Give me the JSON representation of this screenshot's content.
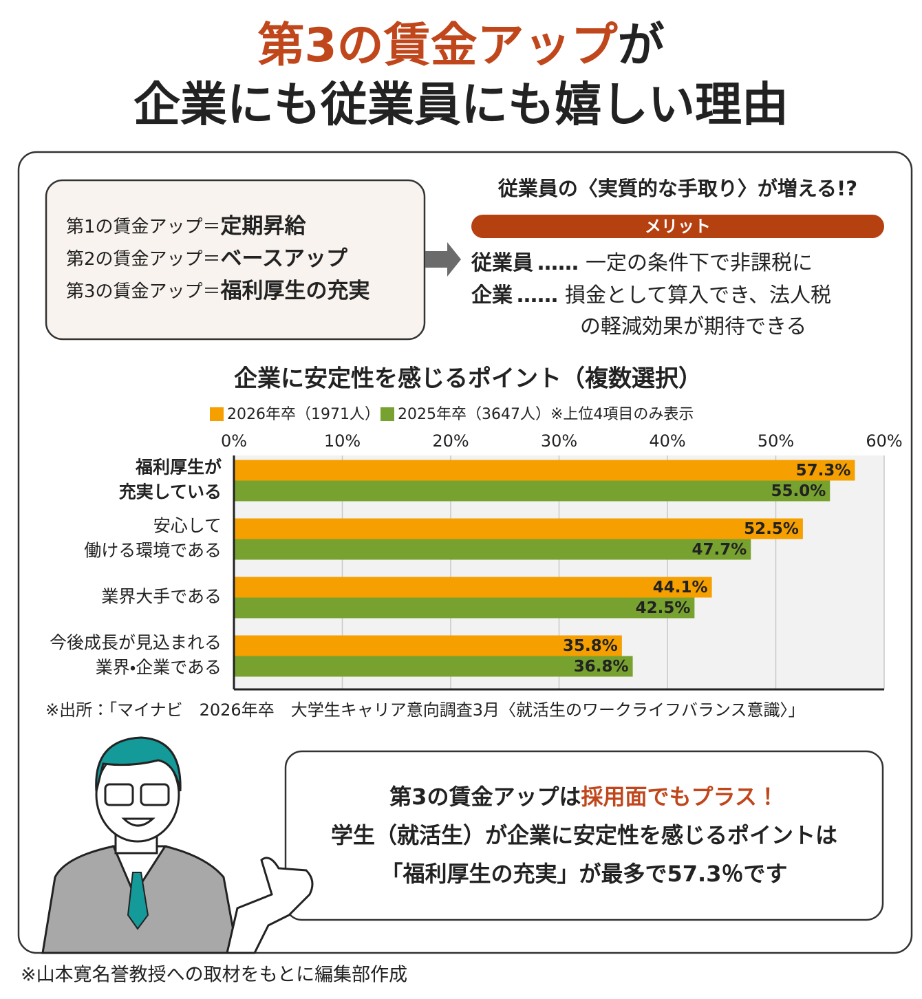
{
  "header": {
    "title_highlight": "第3の賃金アップ",
    "title_rest": "が",
    "title_line2": "企業にも従業員にも嬉しい理由"
  },
  "wage_list": [
    {
      "label": "第1の賃金アップ＝",
      "value": "定期昇給"
    },
    {
      "label": "第2の賃金アップ＝",
      "value": "ベースアップ"
    },
    {
      "label": "第3の賃金アップ＝",
      "value": "福利厚生の充実"
    }
  ],
  "merit": {
    "heading": "従業員の〈実質的な手取り〉が増える!?",
    "badge": "メリット",
    "items": [
      {
        "who": "従業員",
        "dots": "……",
        "lines": [
          "一定の条件下で非課税に"
        ]
      },
      {
        "who": "企業",
        "dots": "……",
        "lines": [
          "損金として算入でき、法人税",
          "の軽減効果が期待できる"
        ]
      }
    ]
  },
  "chart_data": {
    "type": "bar",
    "orientation": "horizontal",
    "title": "企業に安定性を感じるポイント（複数選択）",
    "legend_note": "※上位4項目のみ表示",
    "categories": [
      [
        "福利厚生が",
        "充実している"
      ],
      [
        "安心して",
        "働ける環境である"
      ],
      [
        "業界大手である"
      ],
      [
        "今後成長が見込まれる",
        "業界・企業である"
      ]
    ],
    "series": [
      {
        "name": "2026年卒（1971人）",
        "color": "#f5a000",
        "values": [
          57.3,
          52.5,
          44.1,
          35.8
        ],
        "value_labels": [
          "57.3%",
          "52.5%",
          "44.1%",
          "35.8%"
        ]
      },
      {
        "name": "2025年卒（3647人）",
        "color": "#77a22f",
        "values": [
          55.0,
          47.7,
          42.5,
          36.8
        ],
        "value_labels": [
          "55.0%",
          "47.7%",
          "42.5%",
          "36.8%"
        ]
      }
    ],
    "xlim": [
      0,
      60
    ],
    "xticks": [
      {
        "value": 0,
        "label": "0%"
      },
      {
        "value": 10,
        "label": "10%"
      },
      {
        "value": 20,
        "label": "20%"
      },
      {
        "value": 30,
        "label": "30%"
      },
      {
        "value": 40,
        "label": "40%"
      },
      {
        "value": 50,
        "label": "50%"
      },
      {
        "value": 60,
        "label": "60%"
      }
    ],
    "grid": true,
    "source": "※出所：「マイナビ　2026年卒　大学生キャリア意向調査3月〈就活生のワークライフバランス意識〉」"
  },
  "callout": {
    "line1_a": "第3の賃金アップは",
    "line1_b": "採用面でもプラス！",
    "line2": "学生（就活生）が企業に安定性を感じるポイントは",
    "line3": "「福利厚生の充実」が最多で57.3％です"
  },
  "footnote": "※山本寛名誉教授への取材をもとに編集部作成"
}
